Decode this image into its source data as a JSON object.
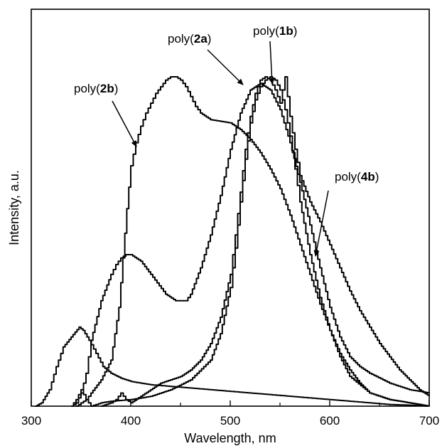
{
  "chart_data": {
    "type": "line",
    "xlabel": "Wavelength, nm",
    "ylabel": "Intensity, a.u.",
    "xlim": [
      300,
      700
    ],
    "ylim": [
      0,
      1.0
    ],
    "xticks": [
      300,
      400,
      500,
      600,
      700
    ],
    "grid": false,
    "legend": "none",
    "annotations": [
      {
        "id": "poly2b",
        "pre": "poly(",
        "bold": "2b",
        "post": ")",
        "target_x": 410,
        "target_y": 0.8
      },
      {
        "id": "poly2a",
        "pre": "poly(",
        "bold": "2a",
        "post": ")",
        "target_x": 509,
        "target_y": 0.98
      },
      {
        "id": "poly1b",
        "pre": "poly(",
        "bold": "1b",
        "post": ")",
        "target_x": 540,
        "target_y": 1.0
      },
      {
        "id": "poly4b",
        "pre": "poly(",
        "bold": "4b",
        "post": ")",
        "target_x": 575,
        "target_y": 0.45
      }
    ],
    "series": [
      {
        "x": [
          304,
          310,
          318,
          325,
          332,
          340,
          348,
          352,
          358,
          365,
          372,
          380,
          390,
          400,
          410,
          420,
          440,
          460,
          480,
          500,
          520,
          540,
          560,
          580,
          600,
          620,
          640,
          660,
          680,
          700
        ],
        "y": [
          0.0,
          0.01,
          0.05,
          0.12,
          0.18,
          0.21,
          0.24,
          0.23,
          0.2,
          0.16,
          0.12,
          0.1,
          0.085,
          0.075,
          0.07,
          0.065,
          0.06,
          0.055,
          0.05,
          0.045,
          0.04,
          0.035,
          0.03,
          0.025,
          0.02,
          0.015,
          0.01,
          0.005,
          0.003,
          0.0
        ]
      },
      {
        "x": [
          340,
          345,
          350,
          355,
          360,
          370,
          380,
          385,
          390,
          395,
          400,
          410,
          420,
          435,
          445,
          455,
          460,
          470,
          480,
          490,
          500,
          510,
          520,
          530,
          540,
          550,
          560,
          570,
          580,
          590,
          600,
          610,
          620,
          630,
          640,
          660,
          680,
          700
        ],
        "y": [
          0.0,
          0.01,
          0.04,
          0.1,
          0.2,
          0.32,
          0.4,
          0.43,
          0.45,
          0.46,
          0.46,
          0.44,
          0.4,
          0.34,
          0.32,
          0.32,
          0.34,
          0.42,
          0.52,
          0.64,
          0.78,
          0.89,
          0.96,
          0.98,
          0.96,
          0.9,
          0.8,
          0.68,
          0.55,
          0.42,
          0.3,
          0.21,
          0.15,
          0.12,
          0.1,
          0.07,
          0.05,
          0.04
        ]
      },
      {
        "x": [
          345,
          350,
          355,
          360,
          370,
          380,
          388,
          392,
          396,
          400,
          405,
          410,
          415,
          420,
          425,
          430,
          435,
          440,
          445,
          450,
          455,
          460,
          465,
          470,
          480,
          490,
          500,
          510,
          520,
          530,
          540,
          550,
          560,
          570,
          580,
          590,
          600,
          610,
          620,
          630,
          640,
          660,
          680,
          700
        ],
        "y": [
          0.0,
          0.01,
          0.02,
          0.04,
          0.08,
          0.14,
          0.3,
          0.45,
          0.6,
          0.73,
          0.8,
          0.85,
          0.89,
          0.92,
          0.95,
          0.97,
          0.99,
          1.0,
          1.0,
          0.99,
          0.97,
          0.94,
          0.91,
          0.89,
          0.87,
          0.865,
          0.86,
          0.84,
          0.81,
          0.77,
          0.72,
          0.66,
          0.58,
          0.49,
          0.4,
          0.31,
          0.23,
          0.16,
          0.11,
          0.07,
          0.04,
          0.02,
          0.01,
          0.0
        ]
      },
      {
        "x": [
          370,
          380,
          385,
          390,
          395,
          400,
          410,
          420,
          430,
          440,
          450,
          460,
          470,
          480,
          490,
          500,
          505,
          510,
          515,
          520,
          525,
          530,
          535,
          540,
          545,
          550,
          555,
          560,
          565,
          570,
          580,
          590,
          600,
          610,
          620,
          630,
          640,
          650,
          660,
          670,
          680,
          690,
          700
        ],
        "y": [
          0.0,
          0.01,
          0.02,
          0.04,
          0.02,
          0.01,
          0.03,
          0.05,
          0.07,
          0.08,
          0.09,
          0.11,
          0.14,
          0.19,
          0.27,
          0.4,
          0.52,
          0.65,
          0.78,
          0.88,
          0.95,
          0.99,
          1.0,
          0.99,
          0.96,
          0.92,
          1.0,
          0.88,
          0.78,
          0.7,
          0.62,
          0.56,
          0.49,
          0.42,
          0.35,
          0.29,
          0.24,
          0.19,
          0.15,
          0.11,
          0.08,
          0.05,
          0.03
        ]
      },
      {
        "x": [
          340,
          345,
          350,
          355,
          360,
          365,
          370,
          380,
          400,
          420,
          440,
          460,
          480,
          490,
          500,
          505,
          510,
          515,
          520,
          525,
          530,
          535,
          540,
          545,
          550,
          555,
          560,
          565,
          570,
          580,
          590,
          600,
          610,
          620,
          640,
          660,
          680,
          700
        ],
        "y": [
          0.0,
          0.02,
          0.05,
          0.02,
          0.0,
          0.005,
          0.01,
          0.015,
          0.02,
          0.03,
          0.05,
          0.08,
          0.14,
          0.22,
          0.36,
          0.48,
          0.62,
          0.75,
          0.86,
          0.93,
          0.97,
          0.99,
          1.0,
          0.99,
          0.96,
          0.9,
          0.82,
          0.72,
          0.62,
          0.46,
          0.33,
          0.23,
          0.15,
          0.09,
          0.04,
          0.02,
          0.01,
          0.0
        ]
      }
    ]
  }
}
